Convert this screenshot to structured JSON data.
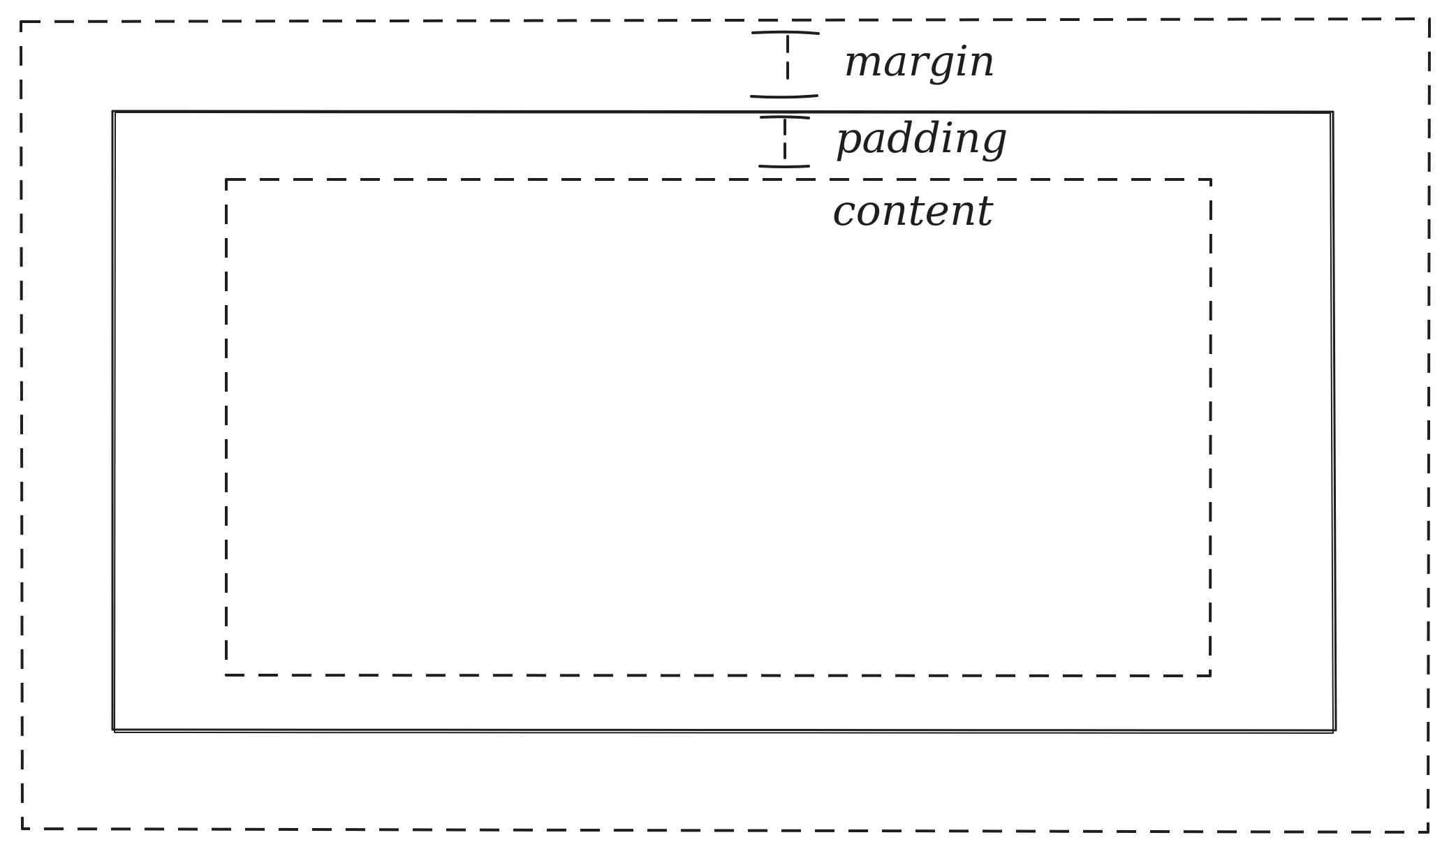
{
  "labels": {
    "margin": "margin",
    "padding": "padding",
    "content": "content"
  },
  "colors": {
    "stroke": "#1e1e1e",
    "background": "#ffffff"
  }
}
